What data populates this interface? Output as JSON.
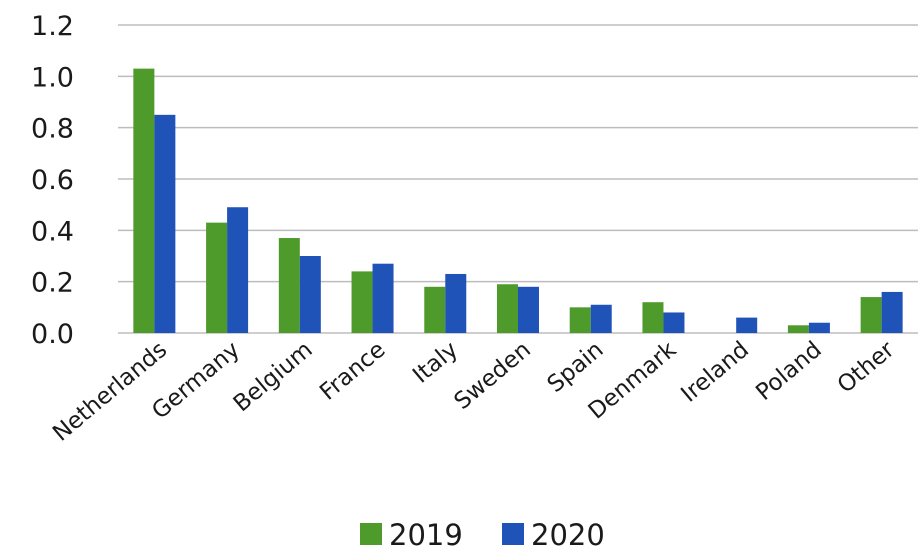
{
  "chart_data": {
    "type": "bar",
    "title": "",
    "xlabel": "",
    "ylabel": "",
    "ylim": [
      0,
      1.2
    ],
    "yticks": [
      "0.0",
      "0.2",
      "0.4",
      "0.6",
      "0.8",
      "1.0",
      "1.2"
    ],
    "grid": true,
    "legend_position": "bottom",
    "categories": [
      "Netherlands",
      "Germany",
      "Belgium",
      "France",
      "Italy",
      "Sweden",
      "Spain",
      "Denmark",
      "Ireland",
      "Poland",
      "Other"
    ],
    "series": [
      {
        "name": "2019",
        "color": "#4e9a2b",
        "values": [
          1.03,
          0.43,
          0.37,
          0.24,
          0.18,
          0.19,
          0.1,
          0.12,
          0.0,
          0.03,
          0.14
        ]
      },
      {
        "name": "2020",
        "color": "#2053b8",
        "values": [
          0.85,
          0.49,
          0.3,
          0.27,
          0.23,
          0.18,
          0.11,
          0.08,
          0.06,
          0.04,
          0.16
        ]
      }
    ]
  }
}
